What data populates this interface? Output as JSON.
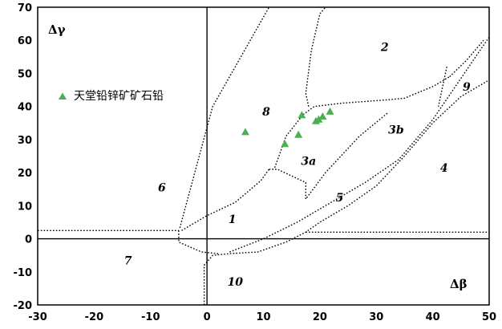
{
  "chart_data": {
    "type": "scatter",
    "xlabel": "Δβ",
    "ylabel": "Δγ",
    "xlim": [
      -30,
      50
    ],
    "ylim": [
      -20,
      70
    ],
    "x_ticks": [
      -30,
      -20,
      -10,
      0,
      10,
      20,
      30,
      40,
      50
    ],
    "y_ticks": [
      -20,
      -10,
      0,
      10,
      20,
      30,
      40,
      50,
      60,
      70
    ],
    "grid": false,
    "legend": {
      "placement": "top-left",
      "entries": [
        {
          "label": "天堂铅锌矿矿石铅",
          "marker": "triangle",
          "color": "#4caf50"
        }
      ]
    },
    "series": [
      {
        "name": "天堂铅锌矿矿石铅",
        "marker": "triangle",
        "color": "#4caf50",
        "points": [
          [
            6.8,
            32.3
          ],
          [
            13.8,
            28.7
          ],
          [
            16.2,
            31.5
          ],
          [
            16.8,
            37.4
          ],
          [
            19.3,
            35.6
          ],
          [
            19.8,
            36.1
          ],
          [
            20.5,
            37.0
          ],
          [
            21.8,
            38.5
          ]
        ]
      }
    ],
    "region_labels": [
      {
        "text": "1",
        "x": 4.5,
        "y": 6
      },
      {
        "text": "2",
        "x": 31.5,
        "y": 58
      },
      {
        "text": "3a",
        "x": 18,
        "y": 23.5
      },
      {
        "text": "3b",
        "x": 33.5,
        "y": 33
      },
      {
        "text": "4",
        "x": 42,
        "y": 21.5
      },
      {
        "text": "5",
        "x": 23.5,
        "y": 12.5
      },
      {
        "text": "6",
        "x": -8,
        "y": 15.5
      },
      {
        "text": "7",
        "x": -14,
        "y": -6.5
      },
      {
        "text": "8",
        "x": 10.5,
        "y": 38.5
      },
      {
        "text": "9",
        "x": 46,
        "y": 46
      },
      {
        "text": "10",
        "x": 5,
        "y": -13
      }
    ],
    "boundaries": [
      [
        [
          -35,
          2.5
        ],
        [
          -5,
          2.5
        ]
      ],
      [
        [
          17.5,
          2
        ],
        [
          52,
          2
        ]
      ],
      [
        [
          -5,
          2.5
        ],
        [
          -5,
          -1
        ],
        [
          -1,
          -4
        ],
        [
          2,
          -4.5
        ]
      ],
      [
        [
          -4.8,
          3.3
        ],
        [
          -2,
          21
        ],
        [
          1,
          40
        ],
        [
          6,
          55
        ],
        [
          11,
          70
        ]
      ],
      [
        [
          -4.5,
          2.5
        ],
        [
          0,
          7
        ],
        [
          5,
          11
        ],
        [
          9.5,
          17.5
        ],
        [
          11,
          21
        ]
      ],
      [
        [
          -0.5,
          -20
        ],
        [
          -0.5,
          -8
        ],
        [
          1,
          -5
        ],
        [
          4,
          -4.5
        ],
        [
          9,
          -4
        ],
        [
          14,
          -1
        ],
        [
          17.5,
          2
        ],
        [
          20,
          5
        ],
        [
          25,
          10
        ],
        [
          30,
          16
        ],
        [
          35,
          25
        ],
        [
          40,
          35
        ],
        [
          45,
          43
        ],
        [
          50,
          48
        ]
      ],
      [
        [
          4,
          -4
        ],
        [
          10,
          0
        ],
        [
          16,
          5
        ],
        [
          22,
          11
        ],
        [
          28,
          17
        ],
        [
          34,
          24
        ],
        [
          40,
          36
        ],
        [
          44,
          46
        ],
        [
          48,
          56
        ],
        [
          50,
          61
        ]
      ],
      [
        [
          11,
          21
        ],
        [
          12.5,
          21
        ],
        [
          17.5,
          17
        ],
        [
          17.5,
          12
        ],
        [
          21,
          20
        ],
        [
          27,
          31
        ],
        [
          32,
          38
        ]
      ],
      [
        [
          12,
          21.5
        ],
        [
          14,
          31
        ],
        [
          17,
          37.5
        ],
        [
          19,
          40
        ],
        [
          24,
          41
        ],
        [
          32,
          42
        ],
        [
          35,
          42.5
        ],
        [
          40,
          46
        ],
        [
          43,
          49
        ]
      ],
      [
        [
          18,
          40
        ],
        [
          17.5,
          44
        ],
        [
          18.5,
          57
        ],
        [
          20,
          68
        ],
        [
          21,
          70
        ]
      ],
      [
        [
          43,
          49
        ],
        [
          46,
          54
        ],
        [
          49,
          60
        ]
      ],
      [
        [
          42.5,
          52
        ],
        [
          41,
          40
        ]
      ]
    ]
  }
}
